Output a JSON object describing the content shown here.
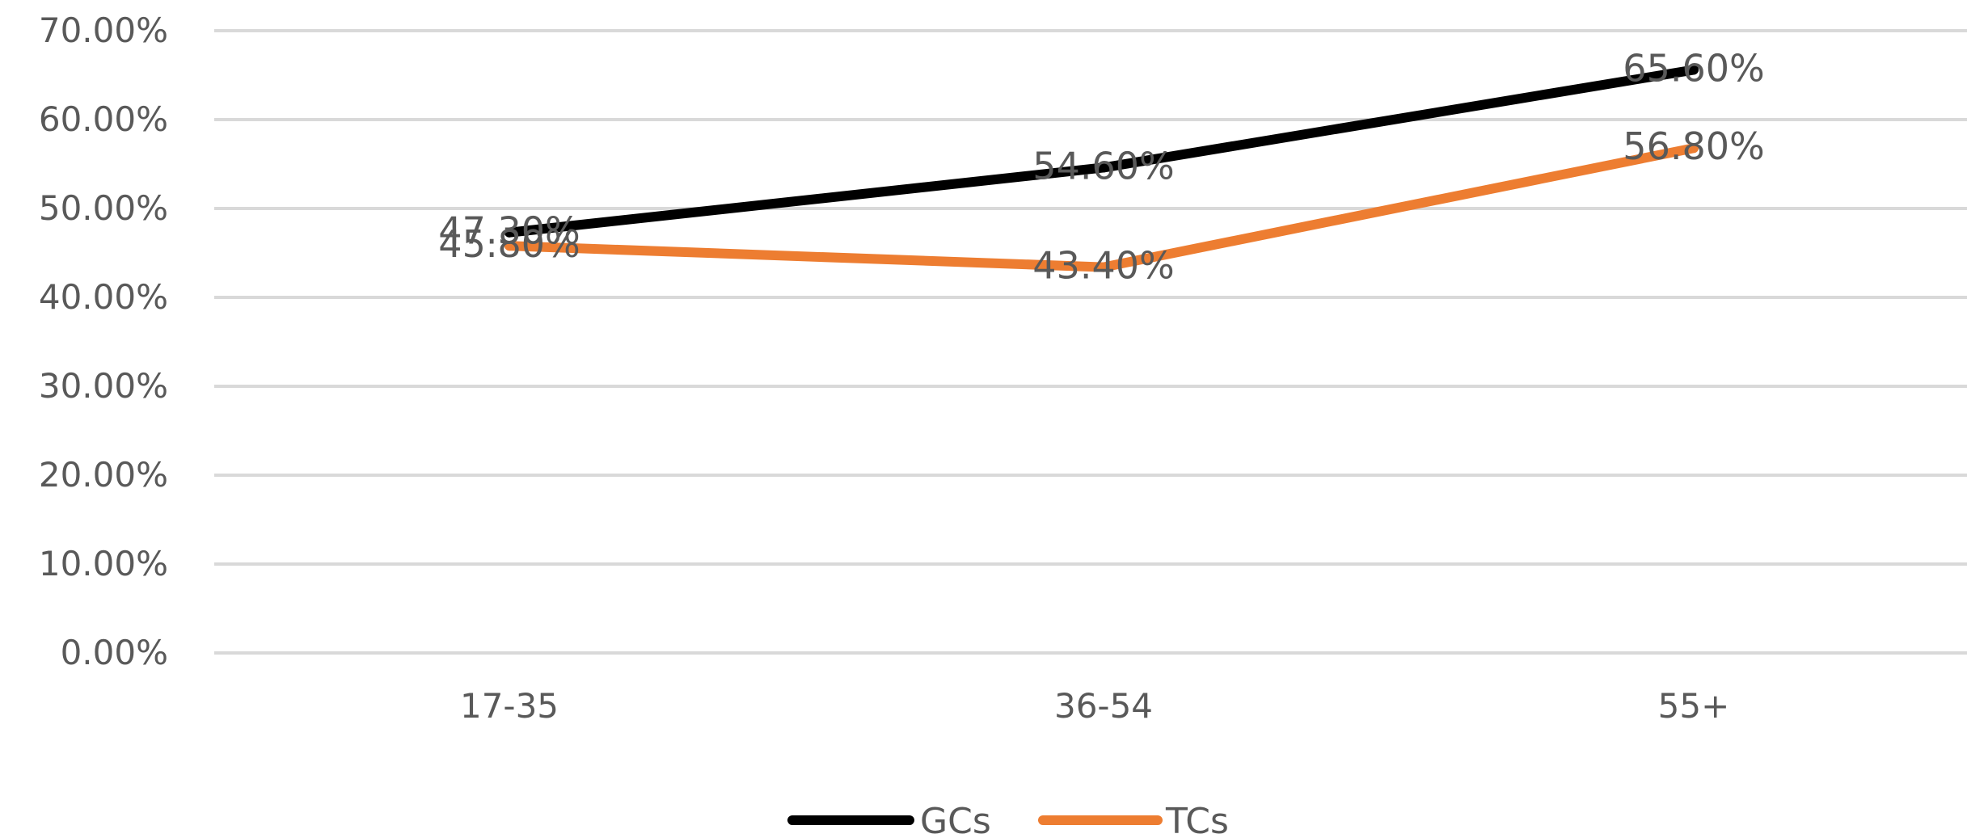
{
  "chart_data": {
    "type": "line",
    "title": "",
    "xlabel": "",
    "ylabel": "",
    "categories": [
      "17-35",
      "36-54",
      "55+"
    ],
    "ylim": [
      0,
      70
    ],
    "yticks": [
      "0.00%",
      "10.00%",
      "20.00%",
      "30.00%",
      "40.00%",
      "50.00%",
      "60.00%",
      "70.00%"
    ],
    "grid": true,
    "legend_position": "bottom",
    "series": [
      {
        "name": "GCs",
        "color": "#000000",
        "values": [
          47.3,
          54.6,
          65.6
        ],
        "labels": [
          "47.30%",
          "54.60%",
          "65.60%"
        ]
      },
      {
        "name": "TCs",
        "color": "#ED7D31",
        "values": [
          45.8,
          43.4,
          56.8
        ],
        "labels": [
          "45.80%",
          "43.40%",
          "56.80%"
        ]
      }
    ]
  }
}
